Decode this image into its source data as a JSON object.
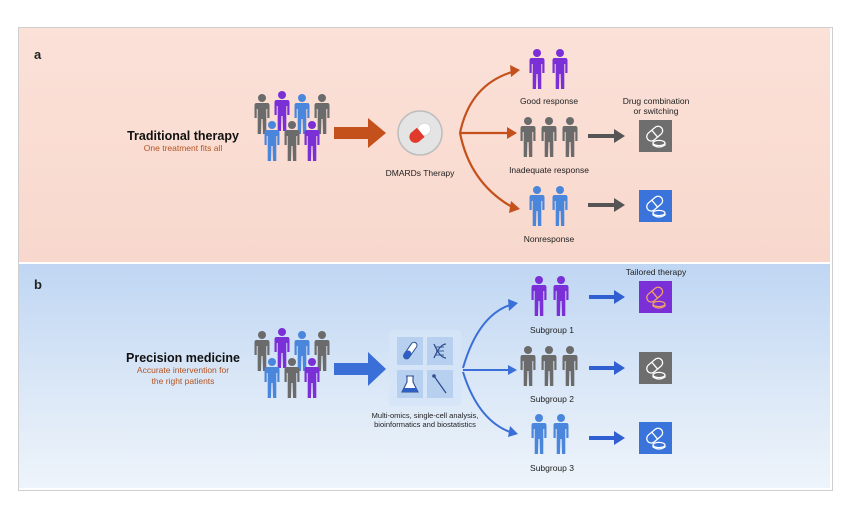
{
  "panel_a": {
    "letter": "a",
    "title": "Traditional therapy",
    "subtitle": "One treatment fits all",
    "therapy_label": "DMARDs Therapy",
    "outcomes": [
      "Good response",
      "Inadequate response",
      "Nonresponse"
    ],
    "next_step_line1": "Drug combination",
    "next_step_line2": "or switching"
  },
  "panel_b": {
    "letter": "b",
    "title": "Precision medicine",
    "subtitle_line1": "Accurate intervention for",
    "subtitle_line2": "the right patients",
    "analysis_line1": "Multi-omics, single-cell analysis,",
    "analysis_line2": "bioinformatics and biostatistics",
    "subgroups": [
      "Subgroup 1",
      "Subgroup 2",
      "Subgroup 3"
    ],
    "tailored_label": "Tailored therapy"
  },
  "colors": {
    "panel_a_bg": "#f9dcd2",
    "panel_b_bg": "#c7dbf4",
    "arrow_orange": "#c4501c",
    "arrow_blue": "#3a6fd8",
    "gray_figure": "#6b6b6b",
    "blue_figure": "#4b86dd",
    "purple_figure": "#7b2fd6"
  }
}
